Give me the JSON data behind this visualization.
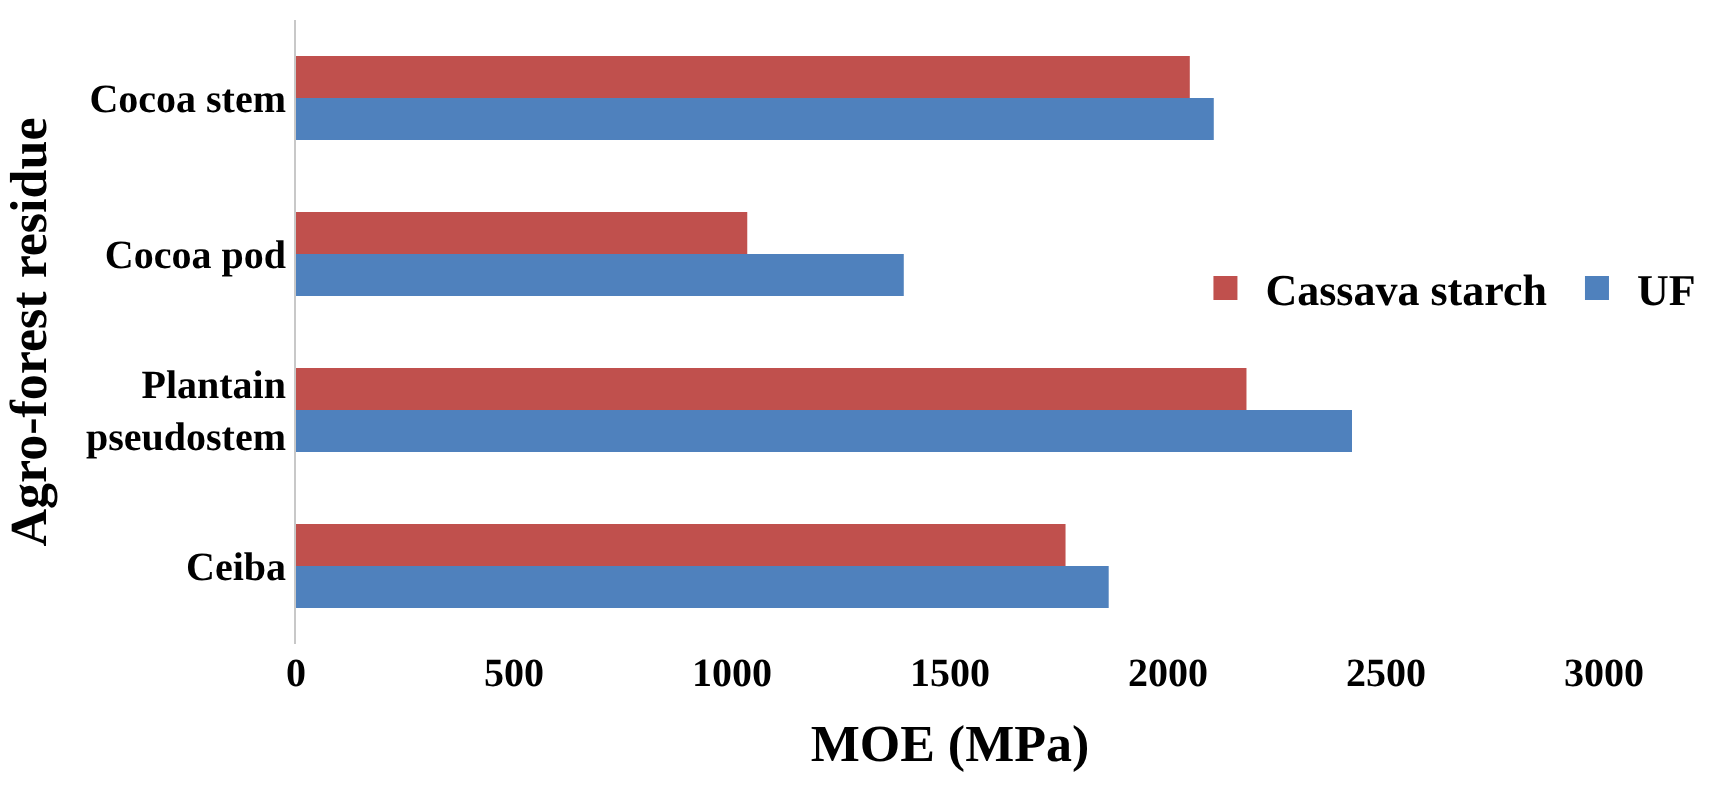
{
  "chart_data": {
    "type": "bar",
    "orientation": "horizontal",
    "xlabel": "MOE (MPa)",
    "ylabel": "Agro-forest residue",
    "categories": [
      "Cocoa stem",
      "Cocoa pod",
      "Plantain\npseudostem",
      "Ceiba"
    ],
    "series": [
      {
        "name": "Cassava starch",
        "color": "#c0504d",
        "values": [
          2050,
          1035,
          2180,
          1765
        ]
      },
      {
        "name": "UF",
        "color": "#4f81bd",
        "values": [
          2105,
          1394,
          2422,
          1864
        ]
      }
    ],
    "xlim": [
      0,
      3000
    ],
    "xticks": [
      0,
      500,
      1000,
      1500,
      2000,
      2500,
      3000
    ],
    "legend": "right"
  }
}
